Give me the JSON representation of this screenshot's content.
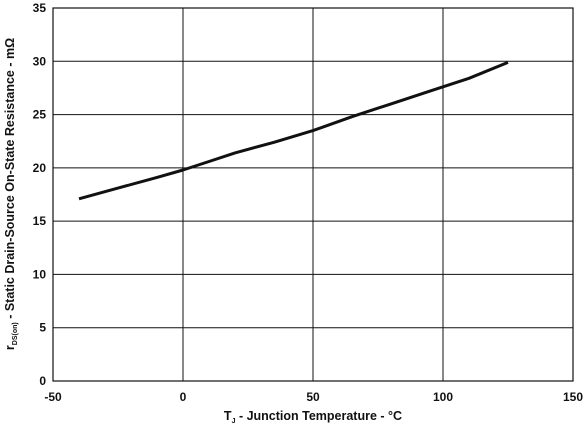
{
  "chart_data": {
    "type": "line",
    "xlabel_main": "T",
    "xlabel_sub": "J",
    "xlabel_rest": " - Junction Temperature - °C",
    "ylabel_main": "r",
    "ylabel_sub": "DS(on)",
    "ylabel_rest": " - Static Drain-Source On-State Resistance - mΩ",
    "xlim": [
      -50,
      150
    ],
    "ylim": [
      0,
      35
    ],
    "xticks": [
      -50,
      0,
      50,
      100,
      150
    ],
    "yticks": [
      0,
      5,
      10,
      15,
      20,
      25,
      30,
      35
    ],
    "grid": true,
    "series": [
      {
        "x": [
          -40,
          -25,
          -10,
          0,
          10,
          20,
          35,
          50,
          65,
          80,
          95,
          110,
          125
        ],
        "y": [
          17.1,
          18.1,
          19.1,
          19.8,
          20.6,
          21.4,
          22.4,
          23.5,
          24.8,
          26.0,
          27.2,
          28.4,
          29.9
        ]
      }
    ]
  }
}
